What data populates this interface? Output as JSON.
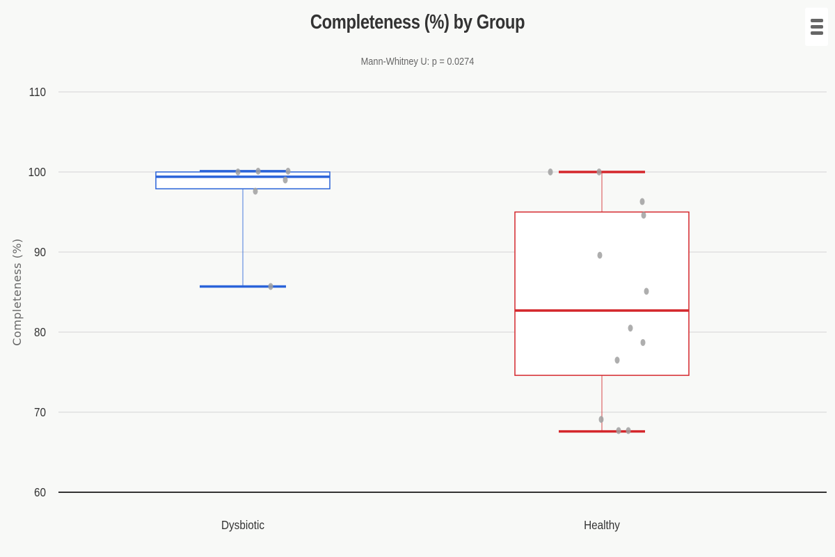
{
  "header": {
    "title": "Completeness (%) by Group",
    "subtitle": "Mann-Whitney U: p = 0.0274"
  },
  "menu": {
    "icon": "hamburger-menu-icon"
  },
  "colors": {
    "dysbiotic": "#2a63d9",
    "healthy": "#d4262b",
    "points": "#a0a0a0",
    "grid": "#e0e0e0",
    "background": "#f8f9f7"
  },
  "chart_data": {
    "type": "box",
    "title": "Completeness (%) by Group",
    "subtitle": "Mann-Whitney U: p = 0.0274",
    "xlabel": "",
    "ylabel": "Completeness (%)",
    "ylim": [
      60,
      110
    ],
    "yticks": [
      60,
      70,
      80,
      90,
      100,
      110
    ],
    "grid": true,
    "categories": [
      "Dysbiotic",
      "Healthy"
    ],
    "series": [
      {
        "name": "Dysbiotic",
        "min": 85.7,
        "q1": 97.9,
        "median": 99.4,
        "q3": 100.0,
        "max": 100.1,
        "points": [
          100.0,
          100.1,
          100.1,
          99.0,
          97.6,
          85.7
        ]
      },
      {
        "name": "Healthy",
        "min": 67.6,
        "q1": 74.6,
        "median": 82.7,
        "q3": 95.0,
        "max": 100.0,
        "points": [
          100.0,
          100.0,
          96.3,
          94.6,
          89.6,
          85.1,
          80.5,
          78.7,
          76.5,
          69.1,
          67.7,
          67.7
        ]
      }
    ]
  }
}
